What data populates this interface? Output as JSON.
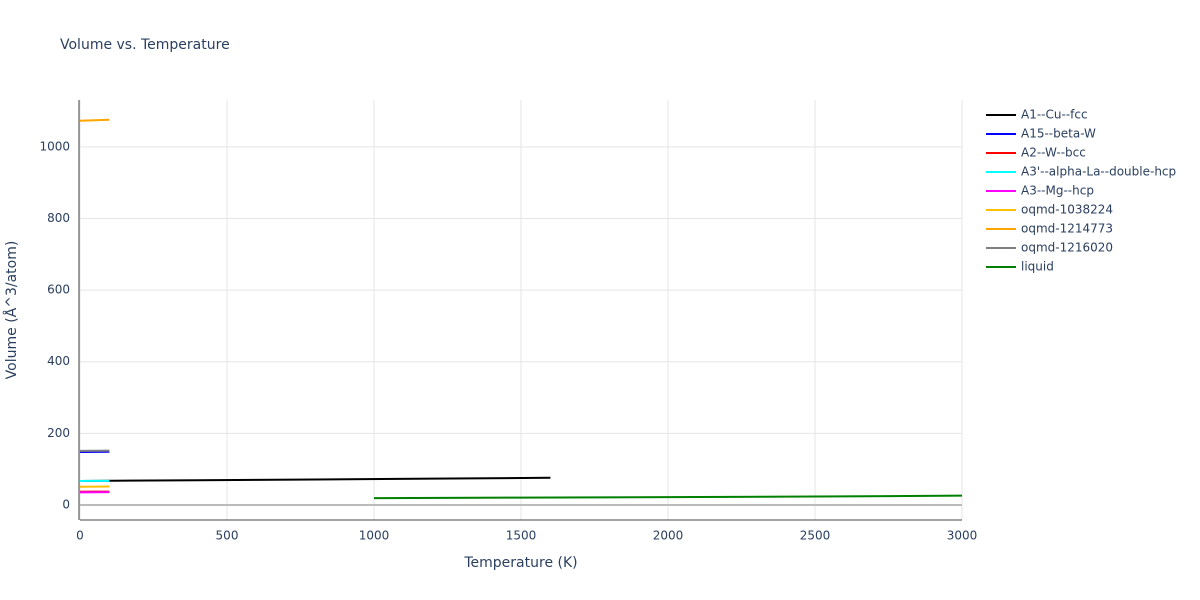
{
  "chart_data": {
    "type": "line",
    "title": "Volume vs. Temperature",
    "x_label": "Temperature (K)",
    "y_label": "Volume (Å^3/atom)",
    "xlim": [
      0,
      3000
    ],
    "ylim": [
      -42,
      1131
    ],
    "xticks": [
      0,
      500,
      1000,
      1500,
      2000,
      2500,
      3000
    ],
    "yticks": [
      0,
      200,
      400,
      600,
      800,
      1000
    ],
    "grid": true,
    "legend": "right",
    "series": [
      {
        "name": "A1--Cu--fcc",
        "color": "#000000",
        "x": [
          0,
          400,
          800,
          1200,
          1600
        ],
        "values": [
          67,
          69,
          71,
          73.5,
          76
        ]
      },
      {
        "name": "A15--beta-W",
        "color": "#0000ff",
        "x": [
          0,
          50,
          100
        ],
        "values": [
          148,
          148.3,
          148.6
        ]
      },
      {
        "name": "A2--W--bcc",
        "color": "#ff0000",
        "x": [
          0,
          50,
          100
        ],
        "values": [
          37,
          37.2,
          37.4
        ]
      },
      {
        "name": "A3'--alpha-La--double-hcp",
        "color": "#00ffff",
        "x": [
          0,
          50,
          100
        ],
        "values": [
          67,
          67.2,
          67.4
        ]
      },
      {
        "name": "A3--Mg--hcp",
        "color": "#ff00ff",
        "x": [
          0,
          50,
          100
        ],
        "values": [
          35,
          35.4,
          35.8
        ]
      },
      {
        "name": "oqmd-1038224",
        "color": "#ffc000",
        "x": [
          0,
          50,
          100
        ],
        "values": [
          51,
          51.3,
          51.6
        ]
      },
      {
        "name": "oqmd-1214773",
        "color": "#ffa500",
        "x": [
          0,
          50,
          100
        ],
        "values": [
          1073,
          1074.5,
          1076
        ]
      },
      {
        "name": "oqmd-1216020",
        "color": "#808080",
        "x": [
          0,
          50,
          100
        ],
        "values": [
          151,
          151.3,
          151.6
        ]
      },
      {
        "name": "liquid",
        "color": "#008000",
        "x": [
          1000,
          1500,
          2000,
          2500,
          3000
        ],
        "values": [
          19,
          20.5,
          22,
          23.5,
          26
        ]
      }
    ]
  }
}
